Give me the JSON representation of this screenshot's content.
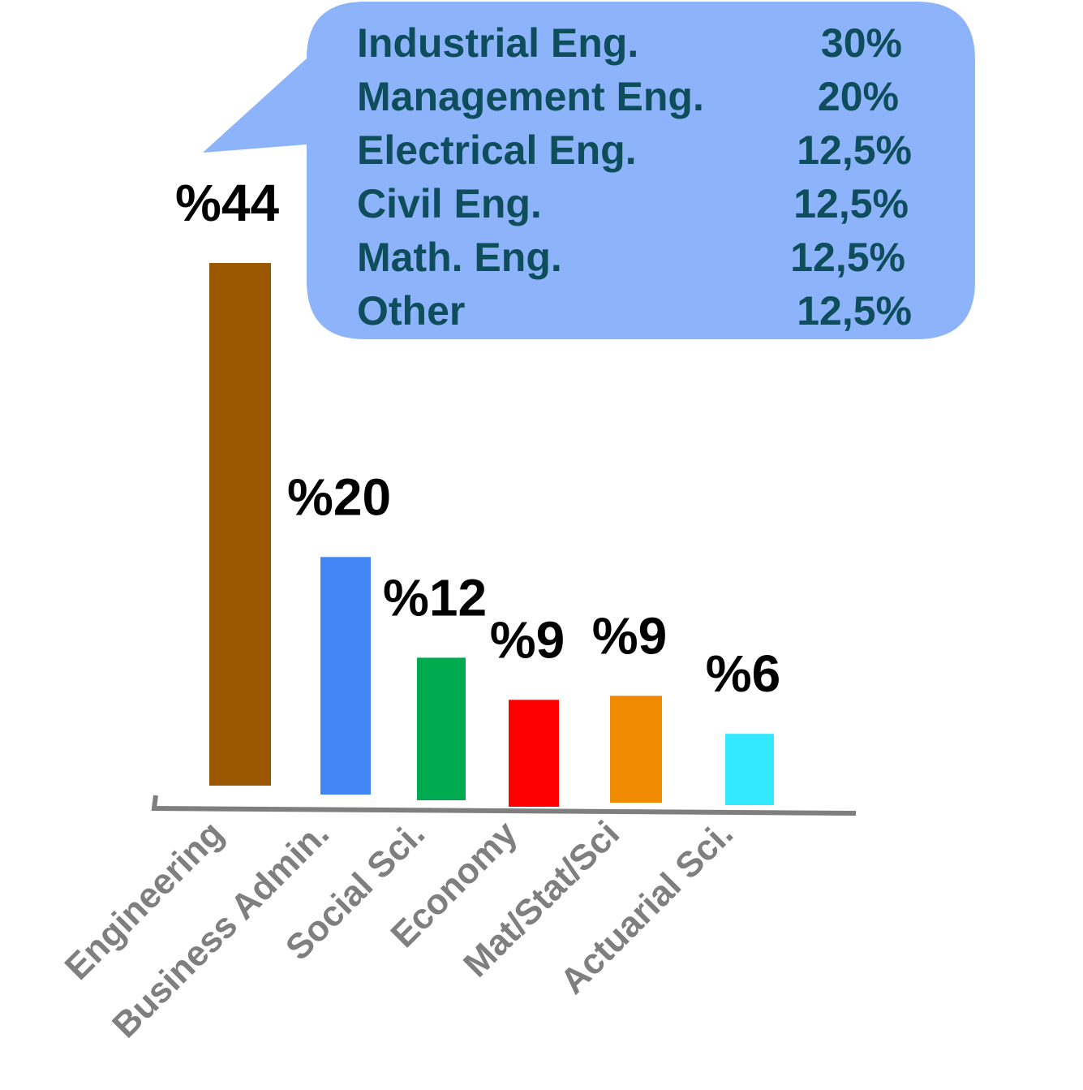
{
  "chart_data": {
    "type": "bar",
    "categories": [
      "Engineering",
      "Business Admin.",
      "Social Sci.",
      "Economy",
      "Mat/Stat/Sci",
      "Actuarial Sci."
    ],
    "values": [
      44,
      20,
      12,
      9,
      9,
      6
    ],
    "data_labels": [
      "%44",
      "%20",
      "%12",
      "%9",
      "%9",
      "%6"
    ],
    "colors": [
      "#9b5800",
      "#4285f4",
      "#00aa4f",
      "#ff0000",
      "#f08a00",
      "#33e8ff"
    ],
    "axis_color": "#7f7f7f",
    "grid": false,
    "legend": "none",
    "callout": {
      "target_category": "Engineering",
      "background": "#8db4fa",
      "text_color": "#0e4d5c",
      "rows": [
        {
          "label": "Industrial Eng.",
          "value": "30%"
        },
        {
          "label": "Management Eng.",
          "value": "20%"
        },
        {
          "label": "Electrical Eng.",
          "value": "12,5%"
        },
        {
          "label": "Civil Eng.",
          "value": "12,5%"
        },
        {
          "label": "Math. Eng.",
          "value": "12,5%"
        },
        {
          "label": "Other",
          "value": "12,5%"
        }
      ]
    }
  }
}
